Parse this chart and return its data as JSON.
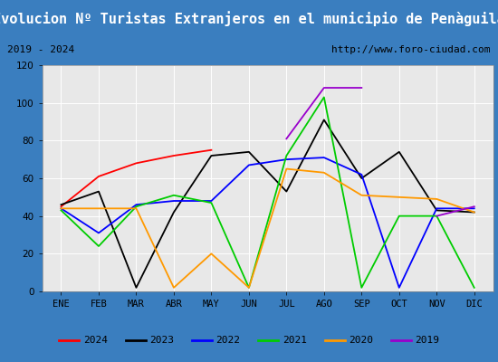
{
  "title": "Evolucion Nº Turistas Extranjeros en el municipio de Penàguila",
  "subtitle_left": "2019 - 2024",
  "subtitle_right": "http://www.foro-ciudad.com",
  "months": [
    "ENE",
    "FEB",
    "MAR",
    "ABR",
    "MAY",
    "JUN",
    "JUL",
    "AGO",
    "SEP",
    "OCT",
    "NOV",
    "DIC"
  ],
  "series": {
    "2024": [
      45,
      61,
      68,
      72,
      75,
      null,
      null,
      null,
      null,
      null,
      null,
      null
    ],
    "2023": [
      46,
      53,
      2,
      42,
      72,
      74,
      53,
      91,
      60,
      74,
      43,
      42
    ],
    "2022": [
      44,
      31,
      46,
      48,
      48,
      67,
      70,
      71,
      62,
      2,
      44,
      44
    ],
    "2021": [
      43,
      24,
      45,
      51,
      47,
      2,
      72,
      103,
      2,
      40,
      40,
      2
    ],
    "2020": [
      44,
      44,
      44,
      2,
      20,
      2,
      65,
      63,
      51,
      50,
      49,
      42
    ],
    "2019": [
      44,
      null,
      null,
      null,
      null,
      null,
      81,
      108,
      108,
      null,
      40,
      45
    ]
  },
  "colors": {
    "2024": "#ff0000",
    "2023": "#000000",
    "2022": "#0000ff",
    "2021": "#00cc00",
    "2020": "#ff9900",
    "2019": "#9900cc"
  },
  "ylim": [
    0,
    120
  ],
  "yticks": [
    0,
    20,
    40,
    60,
    80,
    100,
    120
  ],
  "outer_border_color": "#3a7ebf",
  "bg_title": "#3a7ebf",
  "bg_subtitle": "#d4d4d4",
  "bg_plot": "#e8e8e8",
  "title_color": "#ffffff",
  "title_fontsize": 11,
  "subtitle_fontsize": 8,
  "tick_fontsize": 7.5,
  "legend_fontsize": 8,
  "grid_color": "#ffffff"
}
